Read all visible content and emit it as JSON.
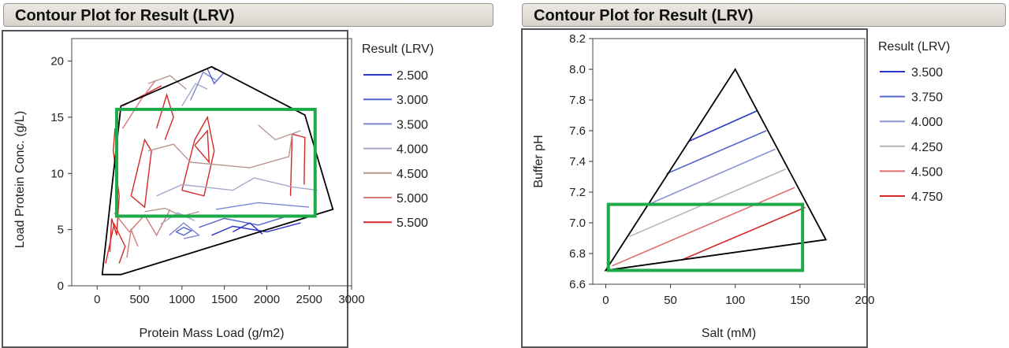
{
  "panels": [
    {
      "title": "Contour Plot for Result (LRV)"
    },
    {
      "title": "Contour Plot for Result (LRV)"
    }
  ],
  "colors": {
    "levels_left": [
      "#2b35c9",
      "#5566cc",
      "#7c86d2",
      "#a4a8cc",
      "#b79690",
      "#d47a7a",
      "#d62828"
    ],
    "levels_right": [
      "#2b35c9",
      "#5566cc",
      "#8a93d6",
      "#b6b6b6",
      "#e07070",
      "#d62828"
    ],
    "highlight": "#1faa4a",
    "hull": "#000000"
  },
  "chart_data": [
    {
      "type": "contour",
      "title": "",
      "xlabel": "Protein Mass Load (g/m2)",
      "ylabel": "Load Protein Conc. (g/L)",
      "xlim": [
        -300,
        3000
      ],
      "ylim": [
        0,
        22
      ],
      "xticks": [
        "0",
        "500",
        "1000",
        "1500",
        "2000",
        "2500",
        "3000"
      ],
      "yticks": [
        "0",
        "5",
        "10",
        "15",
        "20"
      ],
      "legend_title": "Result (LRV)",
      "legend": [
        "2.500",
        "3.000",
        "3.500",
        "4.000",
        "4.500",
        "5.000",
        "5.500"
      ],
      "hull": [
        [
          60,
          1
        ],
        [
          280,
          16
        ],
        [
          1350,
          19.5
        ],
        [
          2450,
          15.2
        ],
        [
          2780,
          6.8
        ],
        [
          280,
          1
        ]
      ],
      "highlight_rect": {
        "x": [
          230,
          2570
        ],
        "y": [
          6.2,
          15.7
        ]
      }
    },
    {
      "type": "contour",
      "title": "",
      "xlabel": "Salt (mM)",
      "ylabel": "Buffer pH",
      "xlim": [
        -10,
        200
      ],
      "ylim": [
        6.6,
        8.2
      ],
      "xticks": [
        "0",
        "50",
        "100",
        "150",
        "200"
      ],
      "yticks": [
        "6.6",
        "6.8",
        "7.0",
        "7.2",
        "7.4",
        "7.6",
        "7.8",
        "8.0",
        "8.2"
      ],
      "legend_title": "Result (LRV)",
      "legend": [
        "3.500",
        "3.750",
        "4.000",
        "4.250",
        "4.500",
        "4.750"
      ],
      "triangle": [
        [
          0,
          6.69
        ],
        [
          100,
          8.0
        ],
        [
          170,
          6.89
        ]
      ],
      "contour_lines": [
        {
          "level": "3.500",
          "from": [
            64,
            7.53
          ],
          "to": [
            117,
            7.73
          ]
        },
        {
          "level": "3.750",
          "from": [
            47,
            7.32
          ],
          "to": [
            124,
            7.6
          ]
        },
        {
          "level": "4.000",
          "from": [
            33,
            7.12
          ],
          "to": [
            131,
            7.48
          ]
        },
        {
          "level": "4.250",
          "from": [
            18,
            6.91
          ],
          "to": [
            139,
            7.35
          ]
        },
        {
          "level": "4.500",
          "from": [
            5,
            6.72
          ],
          "to": [
            146,
            7.23
          ]
        },
        {
          "level": "4.750",
          "from": [
            59,
            6.76
          ],
          "to": [
            154,
            7.1
          ]
        }
      ],
      "highlight_rect": {
        "x": [
          2,
          152
        ],
        "y": [
          6.69,
          7.12
        ]
      }
    }
  ]
}
